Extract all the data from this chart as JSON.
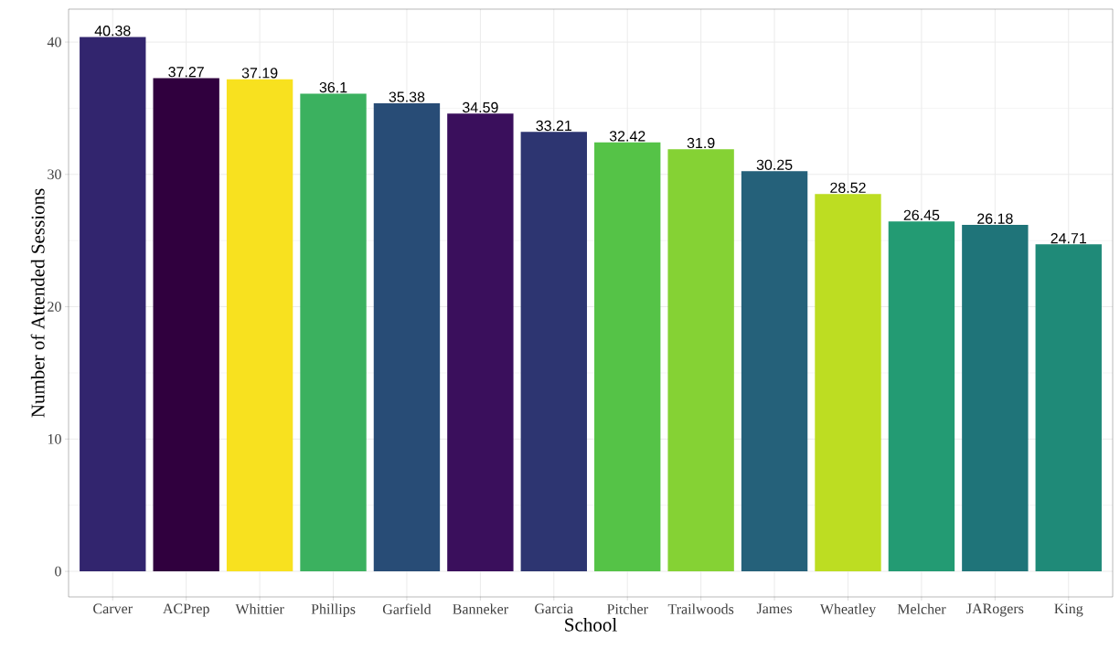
{
  "chart_data": {
    "type": "bar",
    "xlabel": "School",
    "ylabel": "Number of Attended Sessions",
    "categories": [
      "Carver",
      "ACPrep",
      "Whittier",
      "Phillips",
      "Garfield",
      "Banneker",
      "Garcia",
      "Pitcher",
      "Trailwoods",
      "James",
      "Wheatley",
      "Melcher",
      "JARogers",
      "King"
    ],
    "values": [
      40.38,
      37.27,
      37.19,
      36.1,
      35.38,
      34.59,
      33.21,
      32.42,
      31.9,
      30.25,
      28.52,
      26.45,
      26.18,
      24.71
    ],
    "value_labels": [
      "40.38",
      "37.27",
      "37.19",
      "36.1",
      "35.38",
      "34.59",
      "33.21",
      "32.42",
      "31.9",
      "30.25",
      "28.52",
      "26.45",
      "26.18",
      "24.71"
    ],
    "colors": [
      "#32256e",
      "#30003e",
      "#f8e11f",
      "#3bb15f",
      "#284c76",
      "#3a0f5c",
      "#2d3571",
      "#55c347",
      "#85d234",
      "#25617a",
      "#bddd22",
      "#239b73",
      "#1f7479",
      "#1f8a78"
    ],
    "ylim": [
      -1.93,
      42.49
    ],
    "yticks": [
      0,
      10,
      20,
      30,
      40
    ],
    "grid": true
  }
}
